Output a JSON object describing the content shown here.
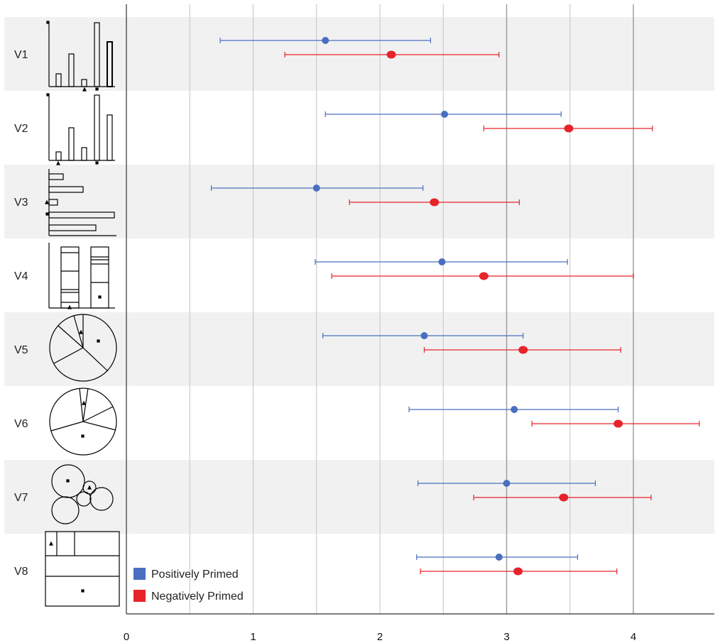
{
  "chart_data": {
    "type": "scatter",
    "xlim": [
      0,
      4.6
    ],
    "xticks": [
      0,
      1,
      2,
      3,
      4
    ],
    "gridlines": [
      0.5,
      1,
      1.5,
      2,
      2.5,
      3,
      3.5,
      4
    ],
    "rows": [
      "V1",
      "V2",
      "V3",
      "V4",
      "V5",
      "V6",
      "V7",
      "V8"
    ],
    "series": [
      {
        "name": "Positively Primed",
        "color": "#4a6fbf",
        "means": [
          1.57,
          2.51,
          1.5,
          2.49,
          2.35,
          3.06,
          3.0,
          2.94
        ],
        "lower": [
          0.74,
          1.57,
          0.67,
          1.49,
          1.55,
          2.23,
          2.3,
          2.29
        ],
        "upper": [
          2.4,
          3.43,
          2.34,
          3.48,
          3.13,
          3.88,
          3.7,
          3.56
        ]
      },
      {
        "name": "Negatively Primed",
        "color": "#e8232a",
        "means": [
          2.09,
          3.49,
          2.43,
          2.82,
          3.13,
          3.88,
          3.45,
          3.09
        ],
        "lower": [
          1.25,
          2.82,
          1.76,
          1.62,
          2.35,
          3.2,
          2.74,
          2.32
        ],
        "upper": [
          2.94,
          4.15,
          3.1,
          4.0,
          3.9,
          4.52,
          4.14,
          3.87
        ]
      }
    ],
    "legend_placement": "bottom-left",
    "grid": true
  }
}
